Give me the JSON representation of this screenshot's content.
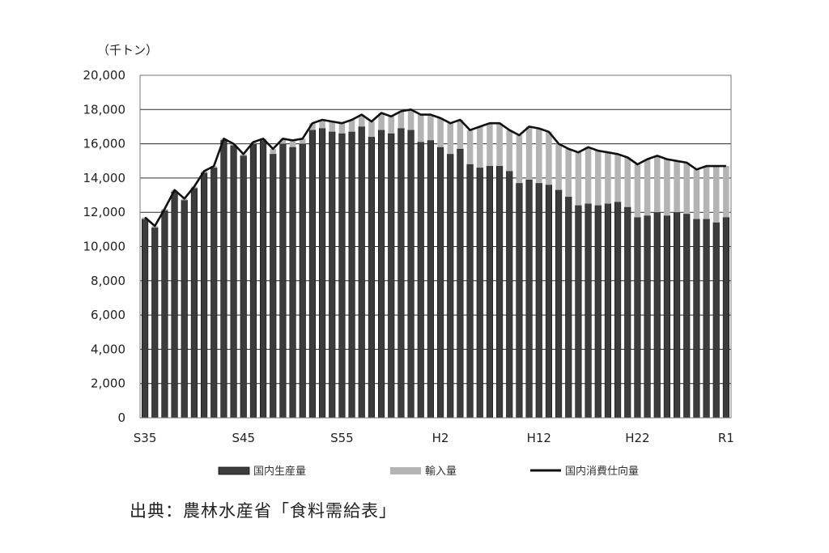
{
  "chart_data": {
    "type": "bar",
    "stacked": true,
    "unit_label": "（千トン）",
    "ylim": [
      0,
      20000
    ],
    "yticks": [
      "20,000",
      "18,000",
      "16,000",
      "14,000",
      "12,000",
      "10,000",
      "8,000",
      "6,000",
      "4,000",
      "2,000",
      "0"
    ],
    "x_tick_labels": [
      {
        "label": "S35",
        "index": 0
      },
      {
        "label": "S45",
        "index": 10
      },
      {
        "label": "S55",
        "index": 20
      },
      {
        "label": "H2",
        "index": 30
      },
      {
        "label": "H12",
        "index": 40
      },
      {
        "label": "H22",
        "index": 50
      },
      {
        "label": "R1",
        "index": 59
      }
    ],
    "grid": "horizontal",
    "legend_position": "bottom",
    "colors": {
      "domestic": "#3c3c3c",
      "imports": "#b4b4b4",
      "consumption": "#111111"
    },
    "series": [
      {
        "name": "国内生産量",
        "type": "bar",
        "values": [
          11600,
          11100,
          12100,
          13200,
          12700,
          13400,
          14300,
          14600,
          16200,
          15900,
          15300,
          16000,
          16200,
          15400,
          16000,
          15800,
          16000,
          16800,
          16900,
          16700,
          16600,
          16700,
          17000,
          16400,
          16800,
          16600,
          16900,
          16800,
          16100,
          16200,
          15800,
          15400,
          15700,
          14800,
          14600,
          14700,
          14700,
          14400,
          13700,
          13900,
          13700,
          13600,
          13300,
          12900,
          12400,
          12500,
          12400,
          12500,
          12600,
          12300,
          11700,
          11800,
          12000,
          11800,
          12000,
          11900,
          11600,
          11600,
          11400,
          11700
        ]
      },
      {
        "name": "輸入量",
        "type": "bar",
        "values": [
          100,
          100,
          100,
          100,
          100,
          100,
          100,
          100,
          100,
          100,
          100,
          100,
          100,
          300,
          300,
          400,
          300,
          400,
          500,
          600,
          600,
          700,
          700,
          900,
          1000,
          1000,
          1000,
          1200,
          1600,
          1500,
          1700,
          1800,
          1700,
          2000,
          2400,
          2500,
          2500,
          2400,
          2800,
          3100,
          3200,
          3100,
          2700,
          2800,
          3100,
          3300,
          3200,
          3000,
          2800,
          2900,
          3100,
          3300,
          3300,
          3300,
          3000,
          3000,
          2900,
          3100,
          3300,
          3000
        ]
      },
      {
        "name": "国内消費仕向量",
        "type": "line",
        "values": [
          11700,
          11200,
          12200,
          13300,
          12800,
          13500,
          14400,
          14700,
          16300,
          16000,
          15400,
          16100,
          16300,
          15700,
          16300,
          16200,
          16300,
          17200,
          17400,
          17300,
          17200,
          17400,
          17700,
          17300,
          17800,
          17600,
          17900,
          18000,
          17700,
          17700,
          17500,
          17200,
          17400,
          16800,
          17000,
          17200,
          17200,
          16800,
          16500,
          17000,
          16900,
          16700,
          16000,
          15700,
          15500,
          15800,
          15600,
          15500,
          15400,
          15200,
          14800,
          15100,
          15300,
          15100,
          15000,
          14900,
          14500,
          14700,
          14700,
          14700
        ]
      }
    ]
  },
  "source_text": "出典：農林水産省「食料需給表」"
}
